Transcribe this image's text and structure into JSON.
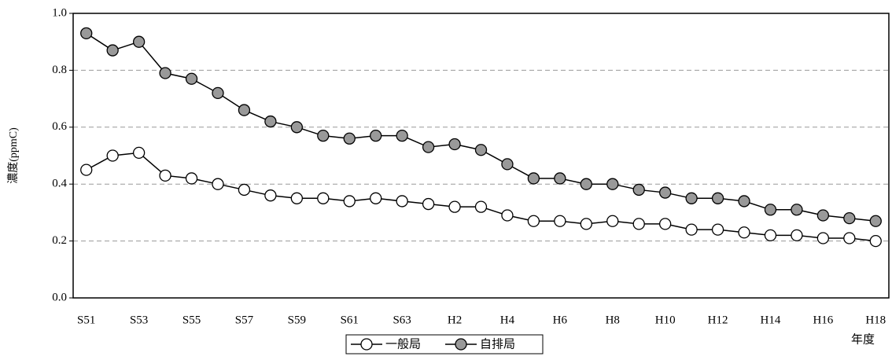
{
  "chart_data": {
    "type": "line",
    "y_label": "濃度(ppmC)",
    "x_label": "年度",
    "categories": [
      "S51",
      null,
      "S53",
      null,
      "S55",
      null,
      "S57",
      null,
      "S59",
      null,
      "S61",
      null,
      "S63",
      null,
      "H2",
      null,
      "H4",
      null,
      "H6",
      null,
      "H8",
      null,
      "H10",
      null,
      "H12",
      null,
      "H14",
      null,
      "H16",
      null,
      "H18"
    ],
    "series": [
      {
        "name": "一般局",
        "color": "#ffffff",
        "values": [
          0.45,
          0.5,
          0.51,
          0.43,
          0.42,
          0.4,
          0.38,
          0.36,
          0.35,
          0.35,
          0.34,
          0.35,
          0.34,
          0.33,
          0.32,
          0.32,
          0.29,
          0.27,
          0.27,
          0.26,
          0.27,
          0.26,
          0.26,
          0.24,
          0.24,
          0.23,
          0.22,
          0.22,
          0.21,
          0.21,
          0.2
        ]
      },
      {
        "name": "自排局",
        "color": "#999999",
        "values": [
          0.93,
          0.87,
          0.9,
          0.79,
          0.77,
          0.72,
          0.66,
          0.62,
          0.6,
          0.57,
          0.56,
          0.57,
          0.57,
          0.53,
          0.54,
          0.52,
          0.47,
          0.42,
          0.42,
          0.4,
          0.4,
          0.38,
          0.37,
          0.35,
          0.35,
          0.34,
          0.31,
          0.31,
          0.29,
          0.28,
          0.27
        ]
      }
    ],
    "ylim": [
      0,
      1
    ],
    "yticks": [
      {
        "value": 0,
        "label": "0.0"
      },
      0.2,
      0.4,
      0.6,
      0.8,
      {
        "value": 1,
        "label": "1.0"
      }
    ],
    "grid": true,
    "legend": "bottom"
  }
}
